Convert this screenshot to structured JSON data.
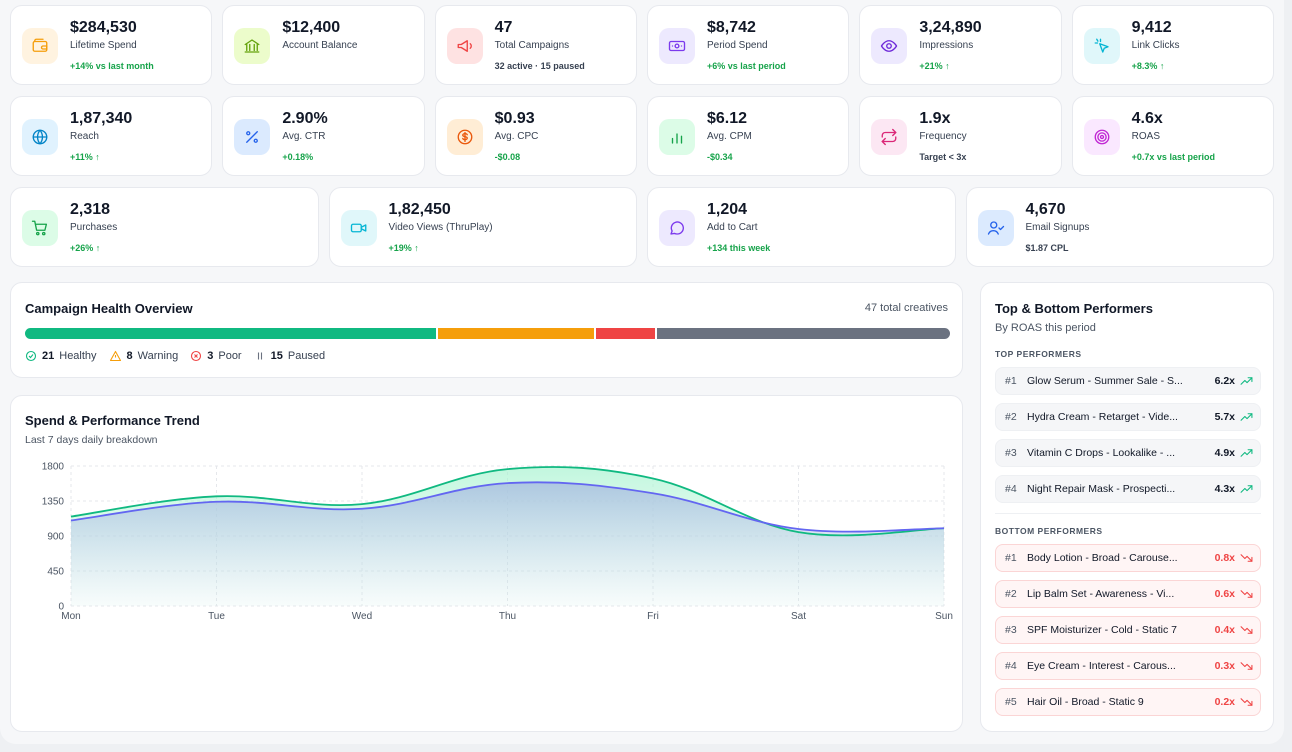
{
  "stats_row1": [
    {
      "value": "$284,530",
      "label": "Lifetime Spend",
      "sub": "+14% vs last month",
      "sub_color": "green",
      "icon": "wallet-icon",
      "icon_bg": "#fff3e0",
      "icon_color": "#f59e0b"
    },
    {
      "value": "$12,400",
      "label": "Account Balance",
      "sub": "",
      "sub_color": "gray",
      "icon": "bank-icon",
      "icon_bg": "#ecfccb",
      "icon_color": "#65a30d"
    },
    {
      "value": "47",
      "label": "Total Campaigns",
      "sub": "32 active · 15 paused",
      "sub_color": "gray",
      "icon": "megaphone-icon",
      "icon_bg": "#fee2e2",
      "icon_color": "#ef4444"
    },
    {
      "value": "$8,742",
      "label": "Period Spend",
      "sub": "+6% vs last period",
      "sub_color": "green",
      "icon": "cash-icon",
      "icon_bg": "#ede9fe",
      "icon_color": "#7c3aed"
    },
    {
      "value": "3,24,890",
      "label": "Impressions",
      "sub": "+21% ↑",
      "sub_color": "green",
      "icon": "eye-icon",
      "icon_bg": "#ede9fe",
      "icon_color": "#6d28d9"
    },
    {
      "value": "9,412",
      "label": "Link Clicks",
      "sub": "+8.3% ↑",
      "sub_color": "green",
      "icon": "pointer-click-icon",
      "icon_bg": "#e0f7fa",
      "icon_color": "#06b6d4"
    }
  ],
  "stats_row2": [
    {
      "value": "1,87,340",
      "label": "Reach",
      "sub": "+11% ↑",
      "sub_color": "green",
      "icon": "globe-icon",
      "icon_bg": "#e0f2fe",
      "icon_color": "#0284c7"
    },
    {
      "value": "2.90%",
      "label": "Avg. CTR",
      "sub": "+0.18%",
      "sub_color": "green",
      "icon": "percent-icon",
      "icon_bg": "#dbeafe",
      "icon_color": "#2563eb"
    },
    {
      "value": "$0.93",
      "label": "Avg. CPC",
      "sub": "-$0.08",
      "sub_color": "green",
      "icon": "dollar-coin-icon",
      "icon_bg": "#ffedd5",
      "icon_color": "#ea580c"
    },
    {
      "value": "$6.12",
      "label": "Avg. CPM",
      "sub": "-$0.34",
      "sub_color": "green",
      "icon": "bar-chart-icon",
      "icon_bg": "#dcfce7",
      "icon_color": "#16a34a"
    },
    {
      "value": "1.9x",
      "label": "Frequency",
      "sub": "Target < 3x",
      "sub_color": "gray",
      "icon": "repeat-icon",
      "icon_bg": "#fce7f3",
      "icon_color": "#db2777"
    },
    {
      "value": "4.6x",
      "label": "ROAS",
      "sub": "+0.7x vs last period",
      "sub_color": "green",
      "icon": "target-icon",
      "icon_bg": "#fae8ff",
      "icon_color": "#c026d3"
    }
  ],
  "stats_row3": [
    {
      "value": "2,318",
      "label": "Purchases",
      "sub": "+26% ↑",
      "sub_color": "green",
      "icon": "cart-icon",
      "icon_bg": "#dcfce7",
      "icon_color": "#16a34a"
    },
    {
      "value": "1,82,450",
      "label": "Video Views (ThruPlay)",
      "sub": "+19% ↑",
      "sub_color": "green",
      "icon": "video-icon",
      "icon_bg": "#e0f7fa",
      "icon_color": "#06b6d4"
    },
    {
      "value": "1,204",
      "label": "Add to Cart",
      "sub": "+134 this week",
      "sub_color": "green",
      "icon": "chat-icon",
      "icon_bg": "#ede9fe",
      "icon_color": "#7c3aed"
    },
    {
      "value": "4,670",
      "label": "Email Signups",
      "sub": "$1.87 CPL",
      "sub_color": "gray",
      "icon": "user-check-icon",
      "icon_bg": "#dbeafe",
      "icon_color": "#2563eb"
    }
  ],
  "health": {
    "title": "Campaign Health Overview",
    "total": "47 total creatives",
    "segments": [
      {
        "count": "21",
        "label": "Healthy",
        "color": "#10b981",
        "icon": "check-circle-icon"
      },
      {
        "count": "8",
        "label": "Warning",
        "color": "#f59e0b",
        "icon": "warning-icon"
      },
      {
        "count": "3",
        "label": "Poor",
        "color": "#ef4444",
        "icon": "x-circle-icon"
      },
      {
        "count": "15",
        "label": "Paused",
        "color": "#6b7280",
        "icon": "pause-icon"
      }
    ]
  },
  "trend": {
    "title": "Spend & Performance Trend",
    "subtitle": "Last 7 days daily breakdown"
  },
  "chart_data": {
    "type": "area",
    "categories": [
      "Mon",
      "Tue",
      "Wed",
      "Thu",
      "Fri",
      "Sat",
      "Sun"
    ],
    "series": [
      {
        "values": [
          1150,
          1410,
          1310,
          1760,
          1640,
          950,
          1000
        ],
        "color": "#10b981"
      },
      {
        "values": [
          1100,
          1340,
          1250,
          1580,
          1450,
          990,
          1000
        ],
        "color": "#6366f1"
      }
    ],
    "yticks": [
      "0",
      "450",
      "900",
      "1350",
      "1800"
    ],
    "ylim": [
      0,
      1800
    ],
    "grid": true
  },
  "performers": {
    "title": "Top & Bottom Performers",
    "subtitle": "By ROAS this period",
    "top_label": "TOP PERFORMERS",
    "bottom_label": "BOTTOM PERFORMERS",
    "top": [
      {
        "rank": "#1",
        "name": "Glow Serum - Summer Sale - S...",
        "roas": "6.2x"
      },
      {
        "rank": "#2",
        "name": "Hydra Cream - Retarget - Vide...",
        "roas": "5.7x"
      },
      {
        "rank": "#3",
        "name": "Vitamin C Drops - Lookalike - ...",
        "roas": "4.9x"
      },
      {
        "rank": "#4",
        "name": "Night Repair Mask - Prospecti...",
        "roas": "4.3x"
      }
    ],
    "bottom": [
      {
        "rank": "#1",
        "name": "Body Lotion - Broad - Carouse...",
        "roas": "0.8x"
      },
      {
        "rank": "#2",
        "name": "Lip Balm Set - Awareness - Vi...",
        "roas": "0.6x"
      },
      {
        "rank": "#3",
        "name": "SPF Moisturizer - Cold - Static 7",
        "roas": "0.4x"
      },
      {
        "rank": "#4",
        "name": "Eye Cream - Interest - Carous...",
        "roas": "0.3x"
      },
      {
        "rank": "#5",
        "name": "Hair Oil - Broad - Static 9",
        "roas": "0.2x"
      }
    ]
  }
}
